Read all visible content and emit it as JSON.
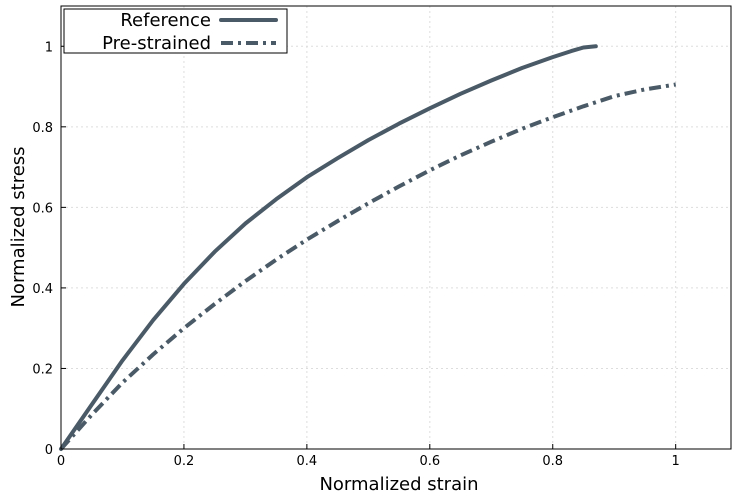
{
  "chart_data": {
    "type": "line",
    "xlabel": "Normalized strain",
    "ylabel": "Normalized stress",
    "xlim": [
      0,
      1.09
    ],
    "ylim": [
      0,
      1.1
    ],
    "x_ticks": [
      "0",
      "0.2",
      "0.4",
      "0.6",
      "0.8",
      "1"
    ],
    "y_ticks": [
      "0",
      "0.2",
      "0.4",
      "0.6",
      "0.8",
      "1"
    ],
    "grid": true,
    "legend_position": "top-left",
    "line_color": "#4a5a66",
    "series": [
      {
        "name": "Reference",
        "style": "solid",
        "x": [
          0,
          0.05,
          0.1,
          0.15,
          0.2,
          0.25,
          0.3,
          0.35,
          0.4,
          0.45,
          0.5,
          0.55,
          0.6,
          0.65,
          0.7,
          0.75,
          0.8,
          0.83,
          0.85,
          0.87
        ],
        "y": [
          0,
          0.11,
          0.22,
          0.32,
          0.41,
          0.49,
          0.56,
          0.62,
          0.675,
          0.722,
          0.767,
          0.808,
          0.846,
          0.882,
          0.915,
          0.946,
          0.973,
          0.988,
          0.997,
          1.0
        ]
      },
      {
        "name": "Pre-strained",
        "style": "dashdot",
        "x": [
          0,
          0.05,
          0.1,
          0.15,
          0.2,
          0.25,
          0.3,
          0.35,
          0.4,
          0.45,
          0.5,
          0.55,
          0.6,
          0.65,
          0.7,
          0.75,
          0.8,
          0.85,
          0.9,
          0.95,
          1.0
        ],
        "y": [
          0,
          0.085,
          0.165,
          0.235,
          0.3,
          0.36,
          0.417,
          0.47,
          0.52,
          0.566,
          0.61,
          0.652,
          0.692,
          0.729,
          0.763,
          0.795,
          0.824,
          0.851,
          0.876,
          0.893,
          0.905
        ]
      }
    ]
  }
}
